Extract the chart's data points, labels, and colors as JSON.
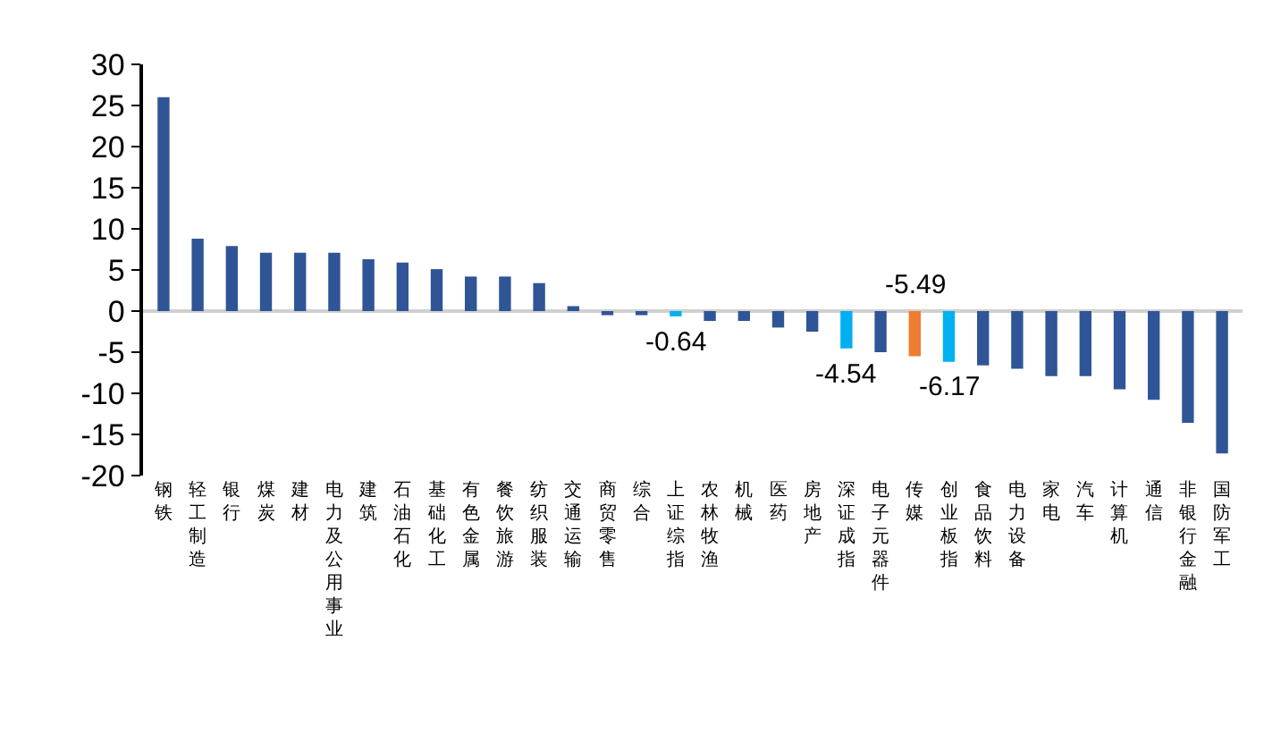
{
  "chart_data": {
    "type": "bar",
    "categories": [
      "钢铁",
      "轻工制造",
      "银行",
      "煤炭",
      "建材",
      "电力及公用事业",
      "建筑",
      "石油石化",
      "基础化工",
      "有色金属",
      "餐饮旅游",
      "纺织服装",
      "交通运输",
      "商贸零售",
      "综合",
      "上证综指",
      "农林牧渔",
      "机械",
      "医药",
      "房地产",
      "深证成指",
      "电子元器件",
      "传媒",
      "创业板指",
      "食品饮料",
      "电力设备",
      "家电",
      "汽车",
      "计算机",
      "通信",
      "非银行金融",
      "国防军工"
    ],
    "values": [
      26.0,
      8.8,
      7.9,
      7.1,
      7.1,
      7.1,
      6.3,
      5.9,
      5.1,
      4.2,
      4.2,
      3.4,
      0.6,
      -0.5,
      -0.5,
      -0.64,
      -1.2,
      -1.2,
      -2.0,
      -2.5,
      -4.54,
      -5.0,
      -5.49,
      -6.17,
      -6.6,
      -7.0,
      -7.9,
      -7.9,
      -9.5,
      -10.8,
      -13.6,
      -17.3
    ],
    "colors": [
      "#2f5597",
      "#2f5597",
      "#2f5597",
      "#2f5597",
      "#2f5597",
      "#2f5597",
      "#2f5597",
      "#2f5597",
      "#2f5597",
      "#2f5597",
      "#2f5597",
      "#2f5597",
      "#2f5597",
      "#2f5597",
      "#2f5597",
      "#00b0f0",
      "#2f5597",
      "#2f5597",
      "#2f5597",
      "#2f5597",
      "#00b0f0",
      "#2f5597",
      "#ed7d31",
      "#00b0f0",
      "#2f5597",
      "#2f5597",
      "#2f5597",
      "#2f5597",
      "#2f5597",
      "#2f5597",
      "#2f5597",
      "#2f5597"
    ],
    "value_labels": [
      null,
      null,
      null,
      null,
      null,
      null,
      null,
      null,
      null,
      null,
      null,
      null,
      null,
      null,
      null,
      "-0.64",
      null,
      null,
      null,
      null,
      "-4.54",
      null,
      "-5.49",
      "-6.17",
      null,
      null,
      null,
      null,
      null,
      null,
      null,
      null
    ],
    "ylim": [
      -20,
      30
    ],
    "yticks": [
      -20,
      -15,
      -10,
      -5,
      0,
      5,
      10,
      15,
      20,
      25,
      30
    ]
  }
}
